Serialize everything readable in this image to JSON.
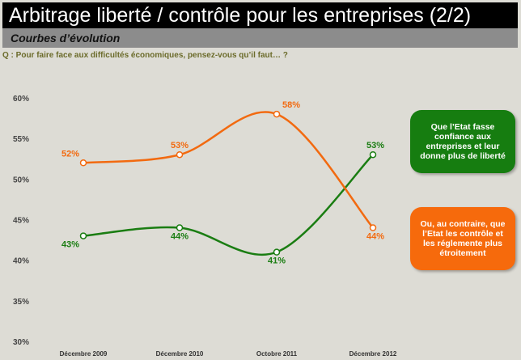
{
  "header": {
    "title": "Arbitrage liberté / contrôle pour les entreprises (2/2)",
    "subtitle": "Courbes d’évolution",
    "question": "Q : Pour faire face aux difficultés économiques, pensez-vous qu’il faut… ?"
  },
  "chart_data": {
    "type": "line",
    "categories": [
      "Décembre 2009",
      "Décembre 2010",
      "Octobre 2011",
      "Décembre 2012"
    ],
    "ylim": [
      30,
      60
    ],
    "yticks": [
      "30%",
      "35%",
      "40%",
      "45%",
      "50%",
      "55%",
      "60%"
    ],
    "series": [
      {
        "name": "Que l’Etat fasse confiance aux entreprises et leur donne plus de liberté",
        "color": "#1a7d12",
        "values": [
          43,
          44,
          41,
          53
        ],
        "labels": [
          "43%",
          "44%",
          "41%",
          "53%"
        ]
      },
      {
        "name": "Ou, au contraire, que l’Etat les contrôle et les réglemente plus étroitement",
        "color": "#f26a10",
        "values": [
          52,
          53,
          58,
          44
        ],
        "labels": [
          "52%",
          "53%",
          "58%",
          "44%"
        ]
      }
    ]
  }
}
